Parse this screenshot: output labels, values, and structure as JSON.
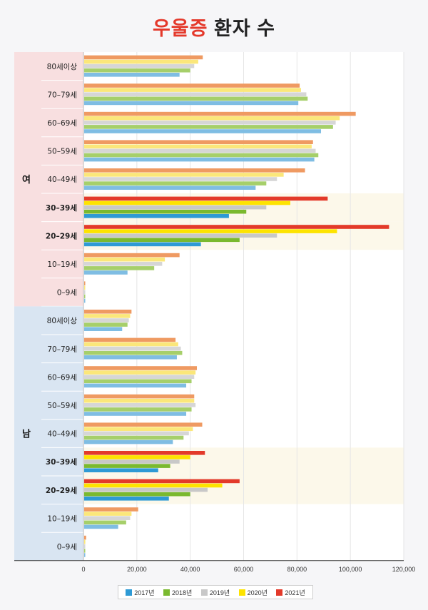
{
  "title": {
    "highlight": "우울증",
    "rest": " 환자 수"
  },
  "colors": {
    "female_band": "#f8dfe0",
    "male_band": "#d9e5f2",
    "highlight_row": "#fcf8ea",
    "series_light": [
      "#7fbde3",
      "#a6cf6a",
      "#d6d6d6",
      "#fbe77a",
      "#ef9a62"
    ],
    "series_bold": [
      "#2e9ad5",
      "#7ab92f",
      "#c8c8c8",
      "#fde300",
      "#e33a2a"
    ]
  },
  "chart_data": {
    "type": "bar",
    "orientation": "horizontal",
    "title": "우울증 환자 수",
    "xlim": [
      0,
      120000
    ],
    "x_ticks": [
      "0",
      "20,000",
      "40,000",
      "60,000",
      "80,000",
      "100,000",
      "120,000"
    ],
    "series_names": [
      "2017년",
      "2018년",
      "2019년",
      "2020년",
      "2021년"
    ],
    "groups": [
      {
        "name": "여",
        "categories": [
          {
            "label": "80세이상",
            "bold": false,
            "values": [
              36000,
              40000,
              41500,
              43000,
              44700
            ]
          },
          {
            "label": "70–79세",
            "bold": false,
            "values": [
              80500,
              84000,
              83500,
              81500,
              81000
            ]
          },
          {
            "label": "60–69세",
            "bold": false,
            "values": [
              89000,
              93500,
              94500,
              96000,
              102000
            ]
          },
          {
            "label": "50–59세",
            "bold": false,
            "values": [
              86500,
              88000,
              87000,
              85500,
              86000
            ]
          },
          {
            "label": "40–49세",
            "bold": false,
            "values": [
              64500,
              68500,
              72500,
              75000,
              83000
            ]
          },
          {
            "label": "30–39세",
            "bold": true,
            "values": [
              54500,
              61000,
              68500,
              77500,
              91500
            ]
          },
          {
            "label": "20–29세",
            "bold": true,
            "values": [
              44000,
              58500,
              72500,
              95000,
              114500
            ]
          },
          {
            "label": "10–19세",
            "bold": false,
            "values": [
              16500,
              26500,
              29500,
              30500,
              36000
            ]
          },
          {
            "label": "0–9세",
            "bold": false,
            "values": [
              300,
              400,
              400,
              400,
              600
            ]
          }
        ]
      },
      {
        "name": "남",
        "categories": [
          {
            "label": "80세이상",
            "bold": false,
            "values": [
              14500,
              16500,
              17000,
              17500,
              18000
            ]
          },
          {
            "label": "70–79세",
            "bold": false,
            "values": [
              35000,
              37000,
              36500,
              35500,
              34500
            ]
          },
          {
            "label": "60–69세",
            "bold": false,
            "values": [
              38500,
              40500,
              41500,
              42000,
              42500
            ]
          },
          {
            "label": "50–59세",
            "bold": false,
            "values": [
              38500,
              40500,
              42000,
              41500,
              41500
            ]
          },
          {
            "label": "40–49세",
            "bold": false,
            "values": [
              33500,
              37500,
              39500,
              41000,
              44500
            ]
          },
          {
            "label": "30–39세",
            "bold": true,
            "values": [
              28000,
              32500,
              36000,
              40000,
              45500
            ]
          },
          {
            "label": "20–29세",
            "bold": true,
            "values": [
              32000,
              40000,
              46500,
              52000,
              58500
            ]
          },
          {
            "label": "10–19세",
            "bold": false,
            "values": [
              13000,
              16000,
              17500,
              18000,
              20500
            ]
          },
          {
            "label": "0–9세",
            "bold": false,
            "values": [
              400,
              600,
              600,
              700,
              1000
            ]
          }
        ]
      }
    ]
  }
}
